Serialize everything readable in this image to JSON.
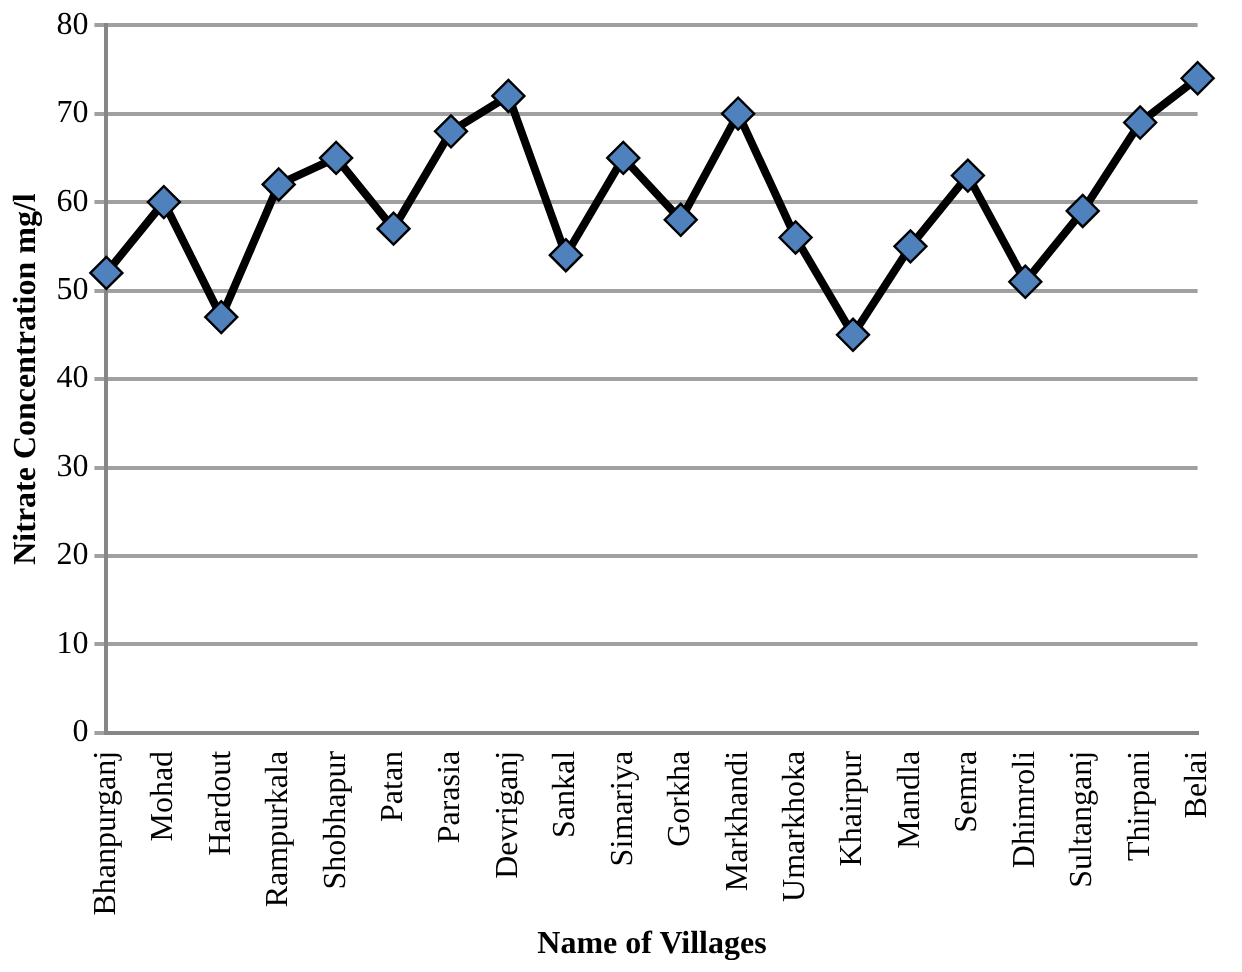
{
  "chart_data": {
    "type": "line",
    "xlabel": "Name of Villages",
    "ylabel": "Nitrate Concentration mg/l",
    "categories": [
      "Bhanpurganj",
      "Mohad",
      "Hardout",
      "Rampurkala",
      "Shobhapur",
      "Patan",
      "Parasia",
      "Devriganj",
      "Sankal",
      "Simariya",
      "Gorkha",
      "Markhandi",
      "Umarkhoka",
      "Khairpur",
      "Mandla",
      "Semra",
      "Dhimroli",
      "Sultanganj",
      "Thirpani",
      "Belai"
    ],
    "series": [
      {
        "color": "#4f81bd",
        "values": [
          52,
          60,
          47,
          62,
          65,
          57,
          68,
          72,
          54,
          65,
          58,
          70,
          56,
          45,
          55,
          63,
          51,
          59,
          69,
          74
        ]
      }
    ],
    "ylim": [
      0,
      80
    ],
    "yticks": [
      0,
      10,
      20,
      30,
      40,
      50,
      60,
      70,
      80
    ],
    "grid": "y",
    "legend": false,
    "marker": "diamond",
    "line_style": "solid"
  }
}
